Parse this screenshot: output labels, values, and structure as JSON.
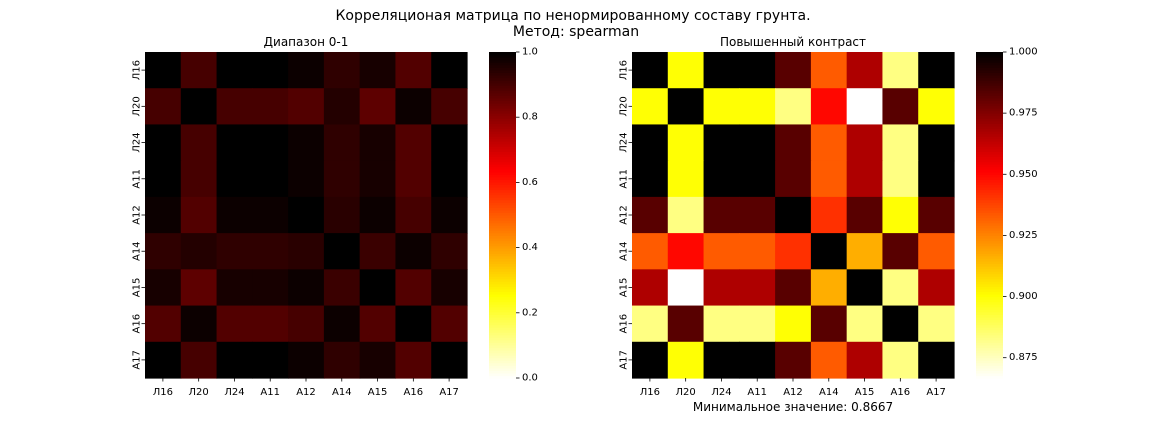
{
  "suptitle_line1": "Корреляционая матрица по ненормированному составу грунта.",
  "suptitle_line2": "Метод: spearman",
  "footer": "Минимальное значение: 0.8667",
  "chart_data": [
    {
      "type": "heatmap",
      "title": "Диапазон 0-1",
      "colormap": "hot_r",
      "vmin": 0.0,
      "vmax": 1.0,
      "colorbar_ticks": [
        "0.0",
        "0.2",
        "0.4",
        "0.6",
        "0.8",
        "1.0"
      ],
      "colorbar_tick_values": [
        0.0,
        0.2,
        0.4,
        0.6,
        0.8,
        1.0
      ],
      "xticklabels": [
        "Л16",
        "Л20",
        "Л24",
        "А11",
        "А12",
        "А14",
        "А15",
        "А16",
        "А17"
      ],
      "yticklabels": [
        "Л16",
        "Л20",
        "Л24",
        "А11",
        "А12",
        "А14",
        "А15",
        "А16",
        "А17"
      ]
    },
    {
      "type": "heatmap",
      "title": "Повышенный контраст",
      "colormap": "hot_r",
      "vmin": 0.8667,
      "vmax": 1.0,
      "colorbar_ticks": [
        "0.875",
        "0.900",
        "0.925",
        "0.950",
        "0.975",
        "1.000"
      ],
      "colorbar_tick_values": [
        0.875,
        0.9,
        0.925,
        0.95,
        0.975,
        1.0
      ],
      "xticklabels": [
        "Л16",
        "Л20",
        "Л24",
        "А11",
        "А12",
        "А14",
        "А15",
        "А16",
        "А17"
      ],
      "yticklabels": [
        "Л16",
        "Л20",
        "Л24",
        "А11",
        "А12",
        "А14",
        "А15",
        "А16",
        "А17"
      ]
    }
  ],
  "matrix": {
    "labels": [
      "Л16",
      "Л20",
      "Л24",
      "А11",
      "А12",
      "А14",
      "А15",
      "А16",
      "А17"
    ],
    "values": [
      [
        1.0,
        0.9,
        1.0,
        1.0,
        0.9833,
        0.9333,
        0.9667,
        0.8833,
        1.0
      ],
      [
        0.9,
        1.0,
        0.9,
        0.9,
        0.8833,
        0.95,
        0.8667,
        0.9833,
        0.9
      ],
      [
        1.0,
        0.9,
        1.0,
        1.0,
        0.9833,
        0.9333,
        0.9667,
        0.8833,
        1.0
      ],
      [
        1.0,
        0.9,
        1.0,
        1.0,
        0.9833,
        0.9333,
        0.9667,
        0.8833,
        1.0
      ],
      [
        0.9833,
        0.8833,
        0.9833,
        0.9833,
        1.0,
        0.9417,
        0.9833,
        0.9,
        0.9833
      ],
      [
        0.9333,
        0.95,
        0.9333,
        0.9333,
        0.9417,
        1.0,
        0.9167,
        0.9833,
        0.9333
      ],
      [
        0.9667,
        0.8667,
        0.9667,
        0.9667,
        0.9833,
        0.9167,
        1.0,
        0.8833,
        0.9667
      ],
      [
        0.8833,
        0.9833,
        0.8833,
        0.8833,
        0.9,
        0.9833,
        0.8833,
        1.0,
        0.8833
      ],
      [
        1.0,
        0.9,
        1.0,
        1.0,
        0.9833,
        0.9333,
        0.9667,
        0.8833,
        1.0
      ]
    ]
  }
}
